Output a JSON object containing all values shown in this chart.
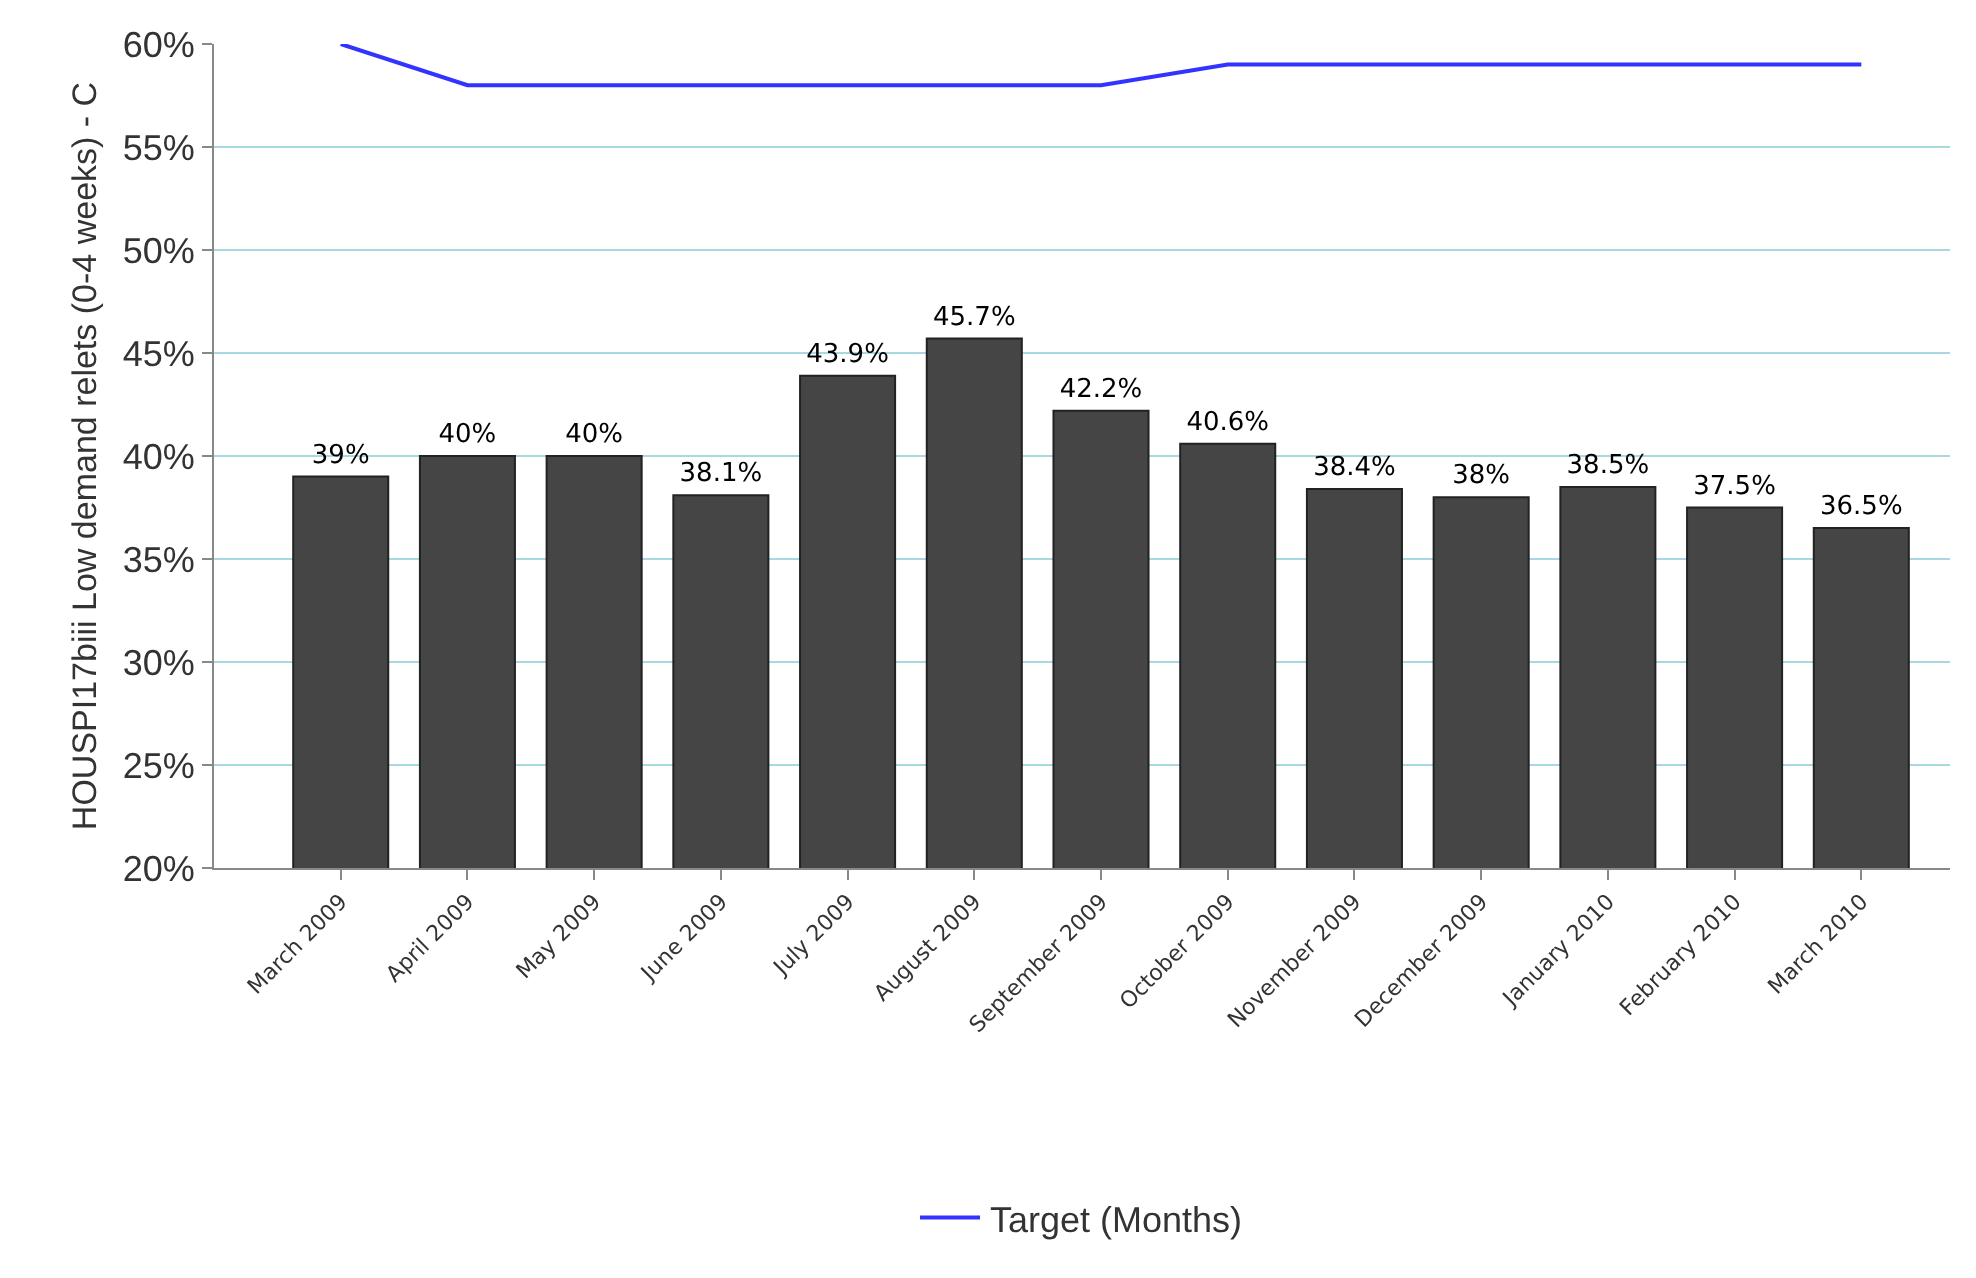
{
  "chart_data": {
    "type": "bar",
    "ylabel": "HOUSPI17biii Low demand relets (0-4 weeks) - C",
    "categories": [
      "March 2009",
      "April 2009",
      "May 2009",
      "June 2009",
      "July 2009",
      "August 2009",
      "September 2009",
      "October 2009",
      "November 2009",
      "December 2009",
      "January 2010",
      "February 2010",
      "March 2010"
    ],
    "series": [
      {
        "color": "#454545",
        "values": [
          39,
          40,
          40,
          38.1,
          43.9,
          45.7,
          42.2,
          40.6,
          38.4,
          38,
          38.5,
          37.5,
          36.5
        ],
        "value_labels": [
          "39%",
          "40%",
          "40%",
          "38.1%",
          "43.9%",
          "45.7%",
          "42.2%",
          "40.6%",
          "38.4%",
          "38%",
          "38.5%",
          "37.5%",
          "36.5%"
        ]
      },
      {
        "type": "line",
        "name": "Target (Months)",
        "color": "#3333ff",
        "values": [
          60,
          58,
          58,
          58,
          58,
          58,
          58,
          59,
          59,
          59,
          59,
          59,
          59
        ]
      }
    ],
    "ylim": [
      20,
      60
    ],
    "yticks": [
      {
        "value": 20,
        "label": "20%"
      },
      {
        "value": 25,
        "label": "25%"
      },
      {
        "value": 30,
        "label": "30%"
      },
      {
        "value": 35,
        "label": "35%"
      },
      {
        "value": 40,
        "label": "40%"
      },
      {
        "value": 45,
        "label": "45%"
      },
      {
        "value": 50,
        "label": "50%"
      },
      {
        "value": 55,
        "label": "55%"
      },
      {
        "value": 60,
        "label": "60%"
      }
    ],
    "grid": "y",
    "legend": "bottom",
    "marker": "none",
    "line_style": "solid"
  }
}
